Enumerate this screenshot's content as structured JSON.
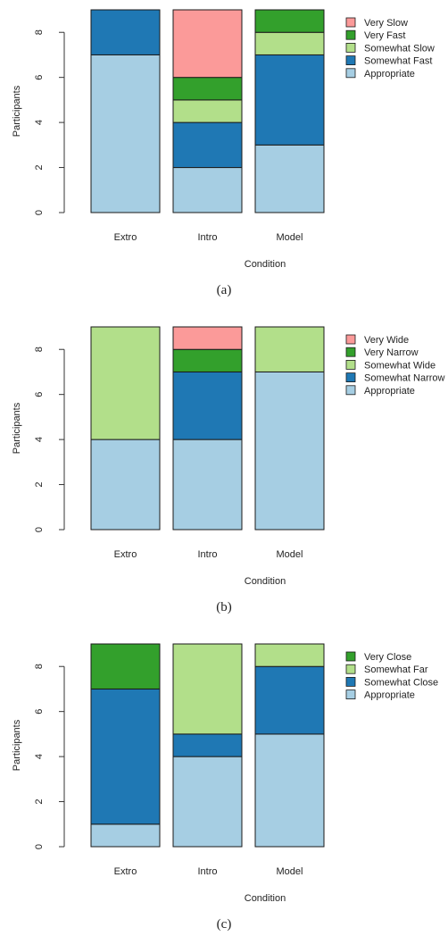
{
  "colors": {
    "Appropriate": "#a6cee3",
    "Somewhat Fast": "#1f78b4",
    "Somewhat Slow": "#b2df8a",
    "Very Fast": "#33a02c",
    "Very Slow": "#fb9a99",
    "Somewhat Narrow": "#1f78b4",
    "Somewhat Wide": "#b2df8a",
    "Very Narrow": "#33a02c",
    "Very Wide": "#fb9a99",
    "Somewhat Close": "#1f78b4",
    "Somewhat Far": "#b2df8a",
    "Very Close": "#33a02c"
  },
  "chart_data": [
    {
      "type": "bar",
      "stacked": true,
      "caption": "(a)",
      "xlabel": "Condition",
      "ylabel": "Participants",
      "categories": [
        "Extro",
        "Intro",
        "Model"
      ],
      "ylim": [
        0,
        9
      ],
      "yticks": [
        0,
        2,
        4,
        6,
        8
      ],
      "legend": [
        "Very Slow",
        "Very Fast",
        "Somewhat Slow",
        "Somewhat Fast",
        "Appropriate"
      ],
      "series": [
        {
          "name": "Appropriate",
          "values": [
            7,
            2,
            3
          ]
        },
        {
          "name": "Somewhat Fast",
          "values": [
            2,
            2,
            4
          ]
        },
        {
          "name": "Somewhat Slow",
          "values": [
            0,
            1,
            1
          ]
        },
        {
          "name": "Very Fast",
          "values": [
            0,
            1,
            1
          ]
        },
        {
          "name": "Very Slow",
          "values": [
            0,
            3,
            0
          ]
        }
      ]
    },
    {
      "type": "bar",
      "stacked": true,
      "caption": "(b)",
      "xlabel": "Condition",
      "ylabel": "Participants",
      "categories": [
        "Extro",
        "Intro",
        "Model"
      ],
      "ylim": [
        0,
        9
      ],
      "yticks": [
        0,
        2,
        4,
        6,
        8
      ],
      "legend": [
        "Very Wide",
        "Very Narrow",
        "Somewhat Wide",
        "Somewhat Narrow",
        "Appropriate"
      ],
      "series": [
        {
          "name": "Appropriate",
          "values": [
            4,
            4,
            7
          ]
        },
        {
          "name": "Somewhat Narrow",
          "values": [
            0,
            3,
            0
          ]
        },
        {
          "name": "Somewhat Wide",
          "values": [
            5,
            0,
            2
          ]
        },
        {
          "name": "Very Narrow",
          "values": [
            0,
            1,
            0
          ]
        },
        {
          "name": "Very Wide",
          "values": [
            0,
            1,
            0
          ]
        }
      ]
    },
    {
      "type": "bar",
      "stacked": true,
      "caption": "(c)",
      "xlabel": "Condition",
      "ylabel": "Participants",
      "categories": [
        "Extro",
        "Intro",
        "Model"
      ],
      "ylim": [
        0,
        9
      ],
      "yticks": [
        0,
        2,
        4,
        6,
        8
      ],
      "legend": [
        "Very Close",
        "Somewhat Far",
        "Somewhat Close",
        "Appropriate"
      ],
      "series": [
        {
          "name": "Appropriate",
          "values": [
            1,
            4,
            5
          ]
        },
        {
          "name": "Somewhat Close",
          "values": [
            6,
            1,
            3
          ]
        },
        {
          "name": "Somewhat Far",
          "values": [
            0,
            4,
            1
          ]
        },
        {
          "name": "Very Close",
          "values": [
            2,
            0,
            0
          ]
        }
      ]
    }
  ]
}
